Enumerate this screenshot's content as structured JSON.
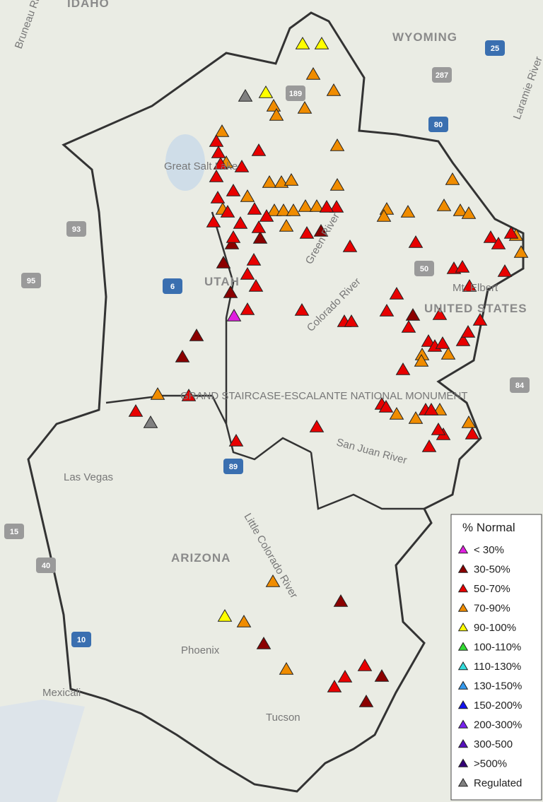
{
  "map": {
    "labels": [
      "IDAHO",
      "WYOMING",
      "Bruneau River",
      "Laramie River",
      "Great Salt Lake",
      "Green River",
      "Colorado River",
      "UTAH",
      "GRAND STAIRCASE-ESCALANTE NATIONAL MONUMENT",
      "San Juan River",
      "Little Colorado River",
      "Las Vegas",
      "ARIZONA",
      "Phoenix",
      "Tucson",
      "Mexicali",
      "Mt. Elbert",
      "UNITED STATES"
    ],
    "shields": [
      "25",
      "287",
      "189",
      "80",
      "93",
      "95",
      "6",
      "50",
      "84",
      "89",
      "15",
      "40",
      "10"
    ]
  },
  "legend": {
    "title": "% Normal",
    "items": [
      {
        "label": "< 30%",
        "color": "#e020e0"
      },
      {
        "label": "30-50%",
        "color": "#8b0000"
      },
      {
        "label": "50-70%",
        "color": "#e80000"
      },
      {
        "label": "70-90%",
        "color": "#f08c00"
      },
      {
        "label": "90-100%",
        "color": "#ffff00"
      },
      {
        "label": "100-110%",
        "color": "#33dd33"
      },
      {
        "label": "110-130%",
        "color": "#33dddd"
      },
      {
        "label": "130-150%",
        "color": "#3399ee"
      },
      {
        "label": "150-200%",
        "color": "#1111ee"
      },
      {
        "label": "200-300%",
        "color": "#7722ee"
      },
      {
        "label": "300-500",
        "color": "#5511bb"
      },
      {
        "label": ">500%",
        "color": "#330077"
      },
      {
        "label": "Regulated",
        "color": "#808080"
      }
    ]
  }
}
